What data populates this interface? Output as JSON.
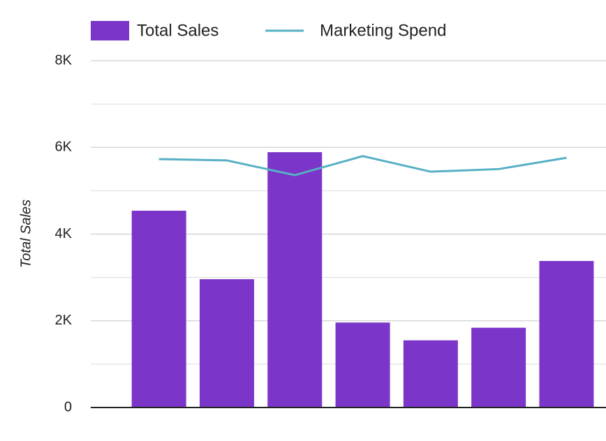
{
  "chart_data": {
    "type": "bar_line",
    "y_axis_label": "Total Sales",
    "categories": [
      null,
      null,
      null,
      null,
      null,
      null,
      null
    ],
    "series": [
      {
        "name": "Total Sales",
        "type": "bar",
        "color": "#7b35c9",
        "values": [
          4540,
          2960,
          5890,
          1960,
          1550,
          1840,
          3380
        ]
      },
      {
        "name": "Marketing Spend",
        "type": "line",
        "color": "#57b0c4",
        "values": [
          5730,
          5700,
          5360,
          5800,
          5440,
          5500,
          5760
        ]
      }
    ],
    "ylim": [
      0,
      8000
    ],
    "yticks": [
      {
        "value": 0,
        "label": "0"
      },
      {
        "value": 2000,
        "label": "2K"
      },
      {
        "value": 4000,
        "label": "4K"
      },
      {
        "value": 6000,
        "label": "6K"
      },
      {
        "value": 8000,
        "label": "8K"
      }
    ],
    "minor_yticks": [
      1000,
      3000,
      5000,
      7000
    ],
    "grid": true,
    "legend": "top"
  }
}
